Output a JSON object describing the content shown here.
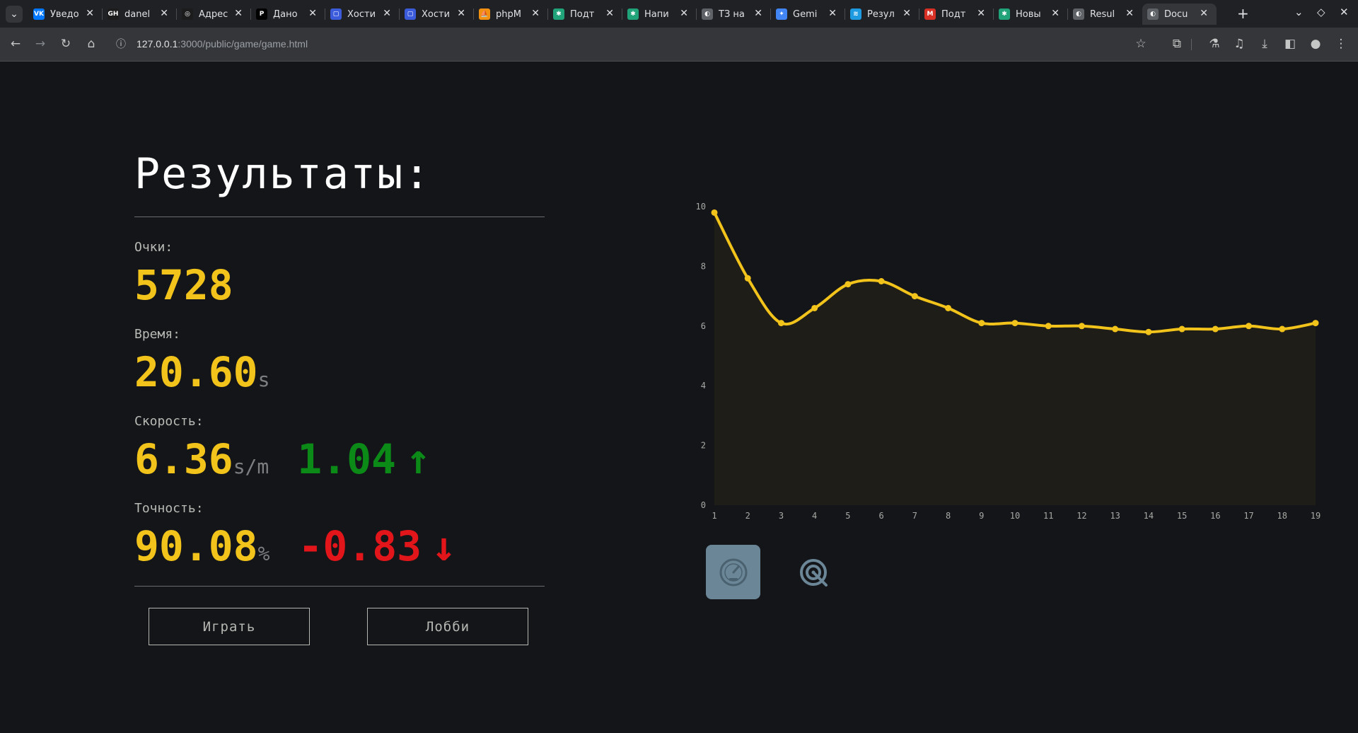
{
  "browser": {
    "tabs": [
      {
        "title": "Уведо",
        "color": "#0077ff",
        "glyph": "VK"
      },
      {
        "title": "danel",
        "color": "#1c1c1c",
        "glyph": "GH"
      },
      {
        "title": "Адрес",
        "color": "#1c1c1c",
        "glyph": "◎"
      },
      {
        "title": "Дано",
        "color": "#000000",
        "glyph": "P"
      },
      {
        "title": "Хости",
        "color": "#3b5bdb",
        "glyph": "▢"
      },
      {
        "title": "Хости",
        "color": "#3b5bdb",
        "glyph": "▢"
      },
      {
        "title": "phpM",
        "color": "#f29111",
        "glyph": "⛵"
      },
      {
        "title": "Подт",
        "color": "#21a37a",
        "glyph": "✱"
      },
      {
        "title": "Напи",
        "color": "#21a37a",
        "glyph": "✱"
      },
      {
        "title": "ТЗ на",
        "color": "#5f6368",
        "glyph": "◐"
      },
      {
        "title": "Gemi",
        "color": "#4285f4",
        "glyph": "✦"
      },
      {
        "title": "Резул",
        "color": "#1e9be0",
        "glyph": "≋"
      },
      {
        "title": "Подт",
        "color": "#d93025",
        "glyph": "M"
      },
      {
        "title": "Новы",
        "color": "#21a37a",
        "glyph": "✱"
      },
      {
        "title": "Resul",
        "color": "#5f6368",
        "glyph": "◐"
      },
      {
        "title": "Docu",
        "color": "#5f6368",
        "glyph": "◐"
      }
    ],
    "active_tab": 15,
    "url_host": "127.0.0.1",
    "url_rest": ":3000/public/game/game.html"
  },
  "results": {
    "title": "Результаты:",
    "score_label": "Очки:",
    "score": "5728",
    "time_label": "Время:",
    "time": "20.60",
    "time_unit": "s",
    "speed_label": "Скорость:",
    "speed": "6.36",
    "speed_unit": "s/m",
    "speed_delta": "1.04",
    "speed_arrow": "↑",
    "accuracy_label": "Точность:",
    "accuracy": "90.08",
    "accuracy_unit": "%",
    "accuracy_delta": "-0.83",
    "accuracy_arrow": "↓"
  },
  "buttons": {
    "play": "Играть",
    "lobby": "Лобби"
  },
  "colors": {
    "accent": "#f2c31b",
    "up": "#0c8a18",
    "down": "#e2151a",
    "mode_active": "#6b8697"
  },
  "modes": [
    {
      "icon": "speedometer-icon",
      "active": true
    },
    {
      "icon": "target-icon",
      "active": false
    }
  ],
  "chart_data": {
    "type": "line",
    "x": [
      1,
      2,
      3,
      4,
      5,
      6,
      7,
      8,
      9,
      10,
      11,
      12,
      13,
      14,
      15,
      16,
      17,
      18,
      19
    ],
    "values": [
      9.8,
      7.6,
      6.1,
      6.6,
      7.4,
      7.5,
      7.0,
      6.6,
      6.1,
      6.1,
      6.0,
      6.0,
      5.9,
      5.8,
      5.9,
      5.9,
      6.0,
      5.9,
      6.1
    ],
    "ylim": [
      0,
      10
    ],
    "yticks": [
      0,
      2,
      4,
      6,
      8,
      10
    ],
    "line_color": "#f2c31b",
    "fill": true,
    "grid": false
  }
}
